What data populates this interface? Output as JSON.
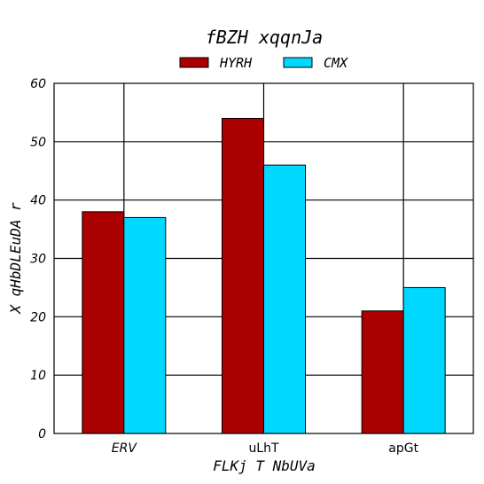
{
  "chart_data": {
    "type": "bar",
    "title": "fBZH xqqnJa",
    "xlabel": "FLKj T NbUVa",
    "ylabel": "X qHbDLEuDA r",
    "categories": [
      "ERV",
      "uLhT",
      "apGt"
    ],
    "category_italic": [
      true,
      false,
      false
    ],
    "series": [
      {
        "name": "HYRH",
        "values": [
          38,
          54,
          21
        ],
        "color": "#aa0000"
      },
      {
        "name": "CMX",
        "values": [
          37,
          46,
          25
        ],
        "color": "#00d8ff"
      }
    ],
    "ylim": [
      0,
      60
    ],
    "yticks": [
      0,
      10,
      20,
      30,
      40,
      50,
      60
    ],
    "grid": true,
    "legend": "top-center"
  }
}
